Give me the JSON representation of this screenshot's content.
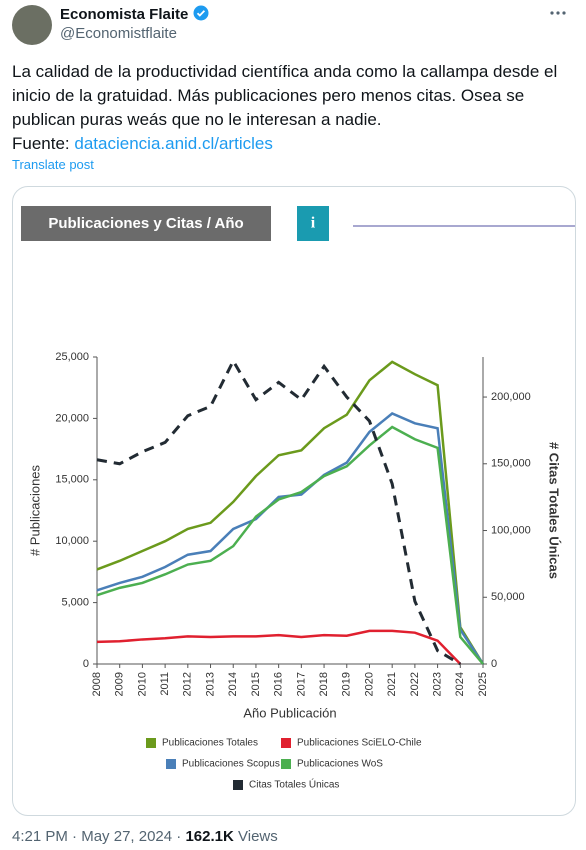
{
  "tweet": {
    "name": "Economista Flaite",
    "handle": "@Economistflaite",
    "body": "La calidad de la productividad científica anda como la callampa desde el inicio de la gratuidad. Más publicaciones pero menos citas. Osea se publican puras weás que no le interesan a nadie.",
    "source_label": "Fuente:",
    "link": "dataciencia.anid.cl/articles",
    "translate": "Translate post",
    "time": "4:21 PM",
    "separator": "·",
    "date": "May 27, 2024",
    "views": "162.1K",
    "views_label": "Views"
  },
  "card": {
    "header": "Publicaciones y Citas / Año",
    "info_icon": "i"
  },
  "chart_data": {
    "type": "line",
    "xlabel": "Año Publicación",
    "ylabel": "# Publicaciones",
    "y2label": "# Citas Totales Únicas",
    "x": [
      2008,
      2009,
      2010,
      2011,
      2012,
      2013,
      2014,
      2015,
      2016,
      2017,
      2018,
      2019,
      2020,
      2021,
      2022,
      2023,
      2024,
      2025
    ],
    "xlim": [
      2008,
      2025
    ],
    "xticks": [
      2008,
      2009,
      2010,
      2011,
      2012,
      2013,
      2014,
      2015,
      2016,
      2017,
      2018,
      2019,
      2020,
      2021,
      2022,
      2023,
      2024,
      2025
    ],
    "ylim": [
      0,
      25000
    ],
    "yticks": [
      0,
      {
        "value": 5000,
        "label": "5,000"
      },
      {
        "value": 10000,
        "label": "10,000"
      },
      {
        "value": 15000,
        "label": "15,000"
      },
      {
        "value": 20000,
        "label": "20,000"
      },
      {
        "value": 25000,
        "label": "25,000"
      }
    ],
    "y2lim": [
      0,
      230000
    ],
    "y2ticks": [
      0,
      {
        "value": 50000,
        "label": "50,000"
      },
      {
        "value": 100000,
        "label": "100,000"
      },
      {
        "value": 150000,
        "label": "150,000"
      },
      {
        "value": 200000,
        "label": "200,000"
      }
    ],
    "series": [
      {
        "name": "Publicaciones Totales",
        "color": "#6b9a1c",
        "values": [
          7700,
          8400,
          9200,
          10000,
          11000,
          11500,
          13200,
          15300,
          17000,
          17400,
          19200,
          20300,
          23100,
          24600,
          23600,
          22700,
          3000,
          0
        ]
      },
      {
        "name": "Publicaciones SciELO-Chile",
        "color": "#e0202f",
        "values": [
          1800,
          1850,
          2000,
          2100,
          2250,
          2200,
          2250,
          2250,
          2350,
          2200,
          2350,
          2300,
          2700,
          2700,
          2550,
          1900,
          0,
          null
        ]
      },
      {
        "name": "Publicaciones Scopus",
        "color": "#4a7fb8",
        "values": [
          6000,
          6600,
          7100,
          7900,
          8900,
          9200,
          11000,
          11800,
          13600,
          13800,
          15400,
          16400,
          18900,
          20400,
          19600,
          19200,
          2800,
          0
        ]
      },
      {
        "name": "Publicaciones WoS",
        "color": "#4caf50",
        "values": [
          5600,
          6200,
          6600,
          7300,
          8100,
          8400,
          9600,
          12000,
          13400,
          14000,
          15300,
          16100,
          17800,
          19300,
          18300,
          17600,
          2200,
          0
        ]
      },
      {
        "name": "Citas Totales Únicas",
        "color": "#222b33",
        "axis": "y2",
        "dashed": true,
        "values": [
          153000,
          150000,
          159000,
          166000,
          186000,
          193000,
          227000,
          198000,
          211000,
          198000,
          223000,
          200000,
          182000,
          135000,
          47000,
          10000,
          0,
          null
        ]
      }
    ]
  }
}
